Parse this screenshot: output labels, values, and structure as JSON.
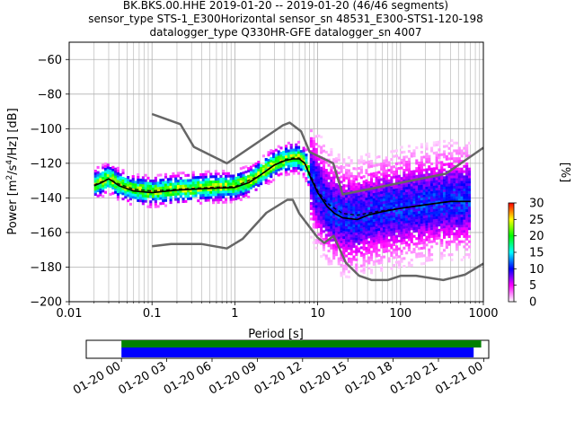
{
  "title": {
    "line1": "BK.BKS.00.HHE   2019-01-20 -- 2019-01-20  (46/46 segments)",
    "line2": "sensor_type STS-1_E300Horizontal sensor_sn 48531_E300-STS1-120-198",
    "line3": "datalogger_type Q330HR-GFE datalogger_sn 4007"
  },
  "chart_data": [
    {
      "type": "heatmap",
      "name": "ppsd",
      "xlabel": "Period [s]",
      "ylabel": "Power [m2/s4/Hz] [dB]",
      "xscale": "log",
      "xlim": [
        0.01,
        1000
      ],
      "ylim": [
        -200,
        -50
      ],
      "x_ticks": [
        0.01,
        0.1,
        1,
        10,
        100,
        1000
      ],
      "x_tick_labels": [
        "0.01",
        "0.1",
        "1",
        "10",
        "100",
        "1000"
      ],
      "y_ticks": [
        -200,
        -180,
        -160,
        -140,
        -120,
        -100,
        -80,
        -60
      ],
      "y_tick_labels": [
        "−200",
        "−180",
        "−160",
        "−140",
        "−120",
        "−100",
        "−80",
        "−60"
      ],
      "grid": true,
      "colorbar": {
        "label": "[%]",
        "range": [
          0,
          30
        ],
        "ticks": [
          0,
          5,
          10,
          15,
          20,
          25,
          30
        ],
        "colormap": [
          "#ffffff",
          "#ff00ff",
          "#0000ff",
          "#00ffff",
          "#00ff00",
          "#ffff00",
          "#ff0000"
        ]
      },
      "series": [
        {
          "name": "high-noise-model",
          "color": "#666666",
          "points": [
            [
              0.1,
              -91.5
            ],
            [
              0.22,
              -97.4
            ],
            [
              0.32,
              -110.5
            ],
            [
              0.8,
              -120
            ],
            [
              3.8,
              -98
            ],
            [
              4.6,
              -96.5
            ],
            [
              6.3,
              -101.5
            ],
            [
              8,
              -113.5
            ],
            [
              15.4,
              -120
            ],
            [
              20,
              -138
            ],
            [
              354.8,
              -126
            ],
            [
              1000,
              -111
            ]
          ]
        },
        {
          "name": "low-noise-model",
          "color": "#666666",
          "points": [
            [
              0.1,
              -168
            ],
            [
              0.17,
              -166.7
            ],
            [
              0.4,
              -166.7
            ],
            [
              0.8,
              -169.2
            ],
            [
              1.24,
              -163.7
            ],
            [
              2.4,
              -148.6
            ],
            [
              4.3,
              -141.1
            ],
            [
              5,
              -141.1
            ],
            [
              6,
              -149
            ],
            [
              10,
              -163
            ],
            [
              12,
              -166
            ],
            [
              15.6,
              -162
            ],
            [
              21.9,
              -177.5
            ],
            [
              31.6,
              -185
            ],
            [
              45,
              -187.5
            ],
            [
              70,
              -187.5
            ],
            [
              101,
              -185
            ],
            [
              154,
              -185
            ],
            [
              328,
              -187.5
            ],
            [
              600,
              -184.4
            ],
            [
              1000,
              -178
            ]
          ]
        },
        {
          "name": "mode",
          "color": "#000000",
          "points": [
            [
              0.02,
              -133
            ],
            [
              0.025,
              -131
            ],
            [
              0.03,
              -129
            ],
            [
              0.035,
              -131
            ],
            [
              0.04,
              -133
            ],
            [
              0.06,
              -136
            ],
            [
              0.1,
              -137
            ],
            [
              0.2,
              -135.5
            ],
            [
              0.5,
              -134.5
            ],
            [
              1,
              -134
            ],
            [
              1.5,
              -131
            ],
            [
              2,
              -127
            ],
            [
              3,
              -121
            ],
            [
              4,
              -118.5
            ],
            [
              5,
              -117.5
            ],
            [
              6,
              -117.5
            ],
            [
              7,
              -120
            ],
            [
              8,
              -127
            ],
            [
              10,
              -137
            ],
            [
              13,
              -145
            ],
            [
              16,
              -149
            ],
            [
              20,
              -151.5
            ],
            [
              30,
              -152.5
            ],
            [
              40,
              -150
            ],
            [
              60,
              -148
            ],
            [
              100,
              -146
            ],
            [
              200,
              -144
            ],
            [
              400,
              -142
            ],
            [
              700,
              -142
            ]
          ]
        },
        {
          "name": "mean",
          "color": "#000000",
          "points": [
            [
              0.02,
              -132.5
            ],
            [
              0.03,
              -129
            ],
            [
              0.04,
              -132
            ],
            [
              0.06,
              -135
            ],
            [
              0.1,
              -136
            ],
            [
              0.2,
              -135
            ],
            [
              0.5,
              -134
            ],
            [
              1,
              -133.5
            ],
            [
              2,
              -127
            ],
            [
              3,
              -121
            ],
            [
              4,
              -118
            ],
            [
              5,
              -117
            ],
            [
              6,
              -117
            ],
            [
              7,
              -120
            ],
            [
              8,
              -126
            ],
            [
              10,
              -136
            ],
            [
              13,
              -143
            ],
            [
              16,
              -146
            ],
            [
              20,
              -149
            ],
            [
              30,
              -150
            ],
            [
              50,
              -148
            ],
            [
              100,
              -146
            ],
            [
              200,
              -144
            ],
            [
              400,
              -142
            ],
            [
              700,
              -142
            ]
          ]
        }
      ]
    },
    {
      "type": "bar",
      "name": "data-coverage",
      "xlim": [
        "2019-01-19 21:40",
        "2019-01-21 00:20"
      ],
      "x_tick_labels": [
        "01-20 00",
        "01-20 03",
        "01-20 06",
        "01-20 09",
        "01-20 12",
        "01-20 15",
        "01-20 18",
        "01-20 21",
        "01-21 00"
      ],
      "series": [
        {
          "name": "available-data",
          "color": "#008000",
          "start": "2019-01-20 00:00",
          "end": "2019-01-20 23:50"
        },
        {
          "name": "used-in-ppsd",
          "color": "#0000ff",
          "start": "2019-01-20 00:00",
          "end": "2019-01-20 23:20"
        }
      ]
    }
  ]
}
